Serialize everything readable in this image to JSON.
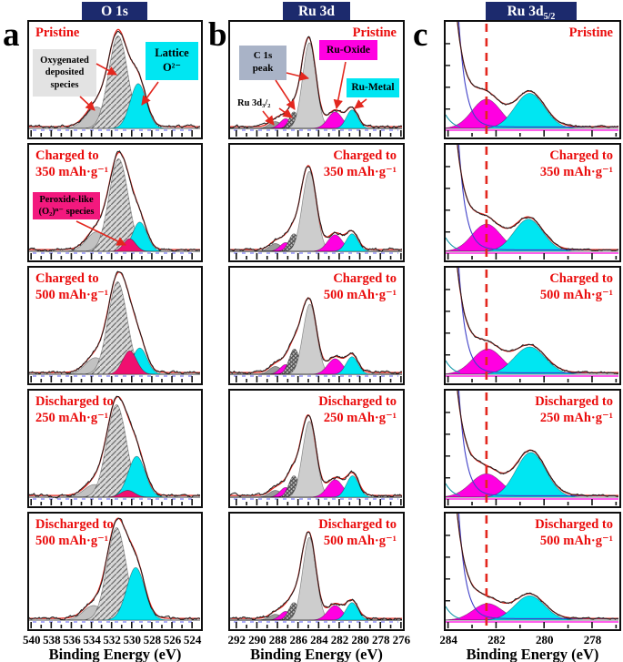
{
  "figure": {
    "letters": [
      "a",
      "b",
      "c"
    ]
  },
  "colors": {
    "header_bg": "#1c2a6d",
    "label_red": "#ea0c0c",
    "fit_red": "#e3271e",
    "data_black": "#1c1c1c",
    "cyan": "#00e6f2",
    "magenta": "#ff00e1",
    "pink": "#f01070",
    "gray_light": "#cdcdcd",
    "gray_mid": "#c2c2c2",
    "gray_dark": "#9a9a9a",
    "bg_blue": "#4040c8",
    "baseline_blue": "#5a5af0",
    "teal": "#1899aa"
  },
  "annotations": {
    "oxygenated": "Oxygenated\ndeposited\nspecies",
    "lattice": "Lattice\nO²⁻",
    "peroxide": "Peroxide-like\n(O₂)ⁿ⁻ species",
    "c1s": "C 1s\npeak",
    "ru3d32": "Ru 3d₃/₂",
    "ru_oxide": "Ru-Oxide",
    "ru_metal": "Ru-Metal"
  },
  "chart_data": [
    {
      "id": "O1s",
      "type": "area",
      "header": {
        "main": "O 1s",
        "sub": ""
      },
      "xlabel": "Binding Energy (eV)",
      "x_range": [
        540.2,
        523.2
      ],
      "x_ticks": [
        540,
        538,
        536,
        534,
        532,
        530,
        528,
        526,
        524
      ],
      "panels": [
        {
          "label": "Pristine",
          "peaks": [
            {
              "name": "oxygenated-deposited-species",
              "fill": "gray",
              "center": 533.5,
              "sigma": 1.05,
              "height": 0.22
            },
            {
              "name": "surface-oxygen",
              "fill": "hatch",
              "center": 531.35,
              "sigma": 0.95,
              "height": 0.95
            },
            {
              "name": "lattice-o2-",
              "fill": "cyan",
              "center": 529.35,
              "sigma": 0.8,
              "height": 0.46
            }
          ]
        },
        {
          "label": "Charged to\n350 mAh·g⁻¹",
          "peaks": [
            {
              "name": "oxygenated-deposited-species",
              "fill": "gray",
              "center": 533.5,
              "sigma": 1.0,
              "height": 0.2
            },
            {
              "name": "surface-oxygen",
              "fill": "hatch",
              "center": 531.3,
              "sigma": 0.95,
              "height": 0.95
            },
            {
              "name": "lattice-o2-",
              "fill": "cyan",
              "center": 529.2,
              "sigma": 0.72,
              "height": 0.3
            },
            {
              "name": "peroxide-species",
              "fill": "pink",
              "center": 530.2,
              "sigma": 0.6,
              "height": 0.13
            }
          ]
        },
        {
          "label": "Charged to\n500 mAh·g⁻¹",
          "peaks": [
            {
              "name": "oxygenated-deposited-species",
              "fill": "gray",
              "center": 533.6,
              "sigma": 1.0,
              "height": 0.17
            },
            {
              "name": "surface-oxygen",
              "fill": "hatch",
              "center": 531.4,
              "sigma": 0.95,
              "height": 0.95
            },
            {
              "name": "lattice-o2-",
              "fill": "cyan",
              "center": 529.2,
              "sigma": 0.72,
              "height": 0.27
            },
            {
              "name": "peroxide-species",
              "fill": "pink",
              "center": 530.2,
              "sigma": 0.7,
              "height": 0.24
            }
          ]
        },
        {
          "label": "Discharged to\n250 mAh·g⁻¹",
          "peaks": [
            {
              "name": "oxygenated-deposited-species",
              "fill": "gray",
              "center": 533.7,
              "sigma": 1.0,
              "height": 0.13
            },
            {
              "name": "surface-oxygen",
              "fill": "hatch",
              "center": 531.5,
              "sigma": 0.98,
              "height": 0.95
            },
            {
              "name": "lattice-o2-",
              "fill": "cyan",
              "center": 529.5,
              "sigma": 0.85,
              "height": 0.42
            },
            {
              "name": "peroxide-species",
              "fill": "pink",
              "center": 530.4,
              "sigma": 0.7,
              "height": 0.07
            }
          ]
        },
        {
          "label": "Discharged to\n500 mAh·g⁻¹",
          "peaks": [
            {
              "name": "oxygenated-deposited-species",
              "fill": "gray",
              "center": 533.8,
              "sigma": 1.0,
              "height": 0.15
            },
            {
              "name": "surface-oxygen",
              "fill": "hatch",
              "center": 531.5,
              "sigma": 0.95,
              "height": 0.95
            },
            {
              "name": "lattice-o2-",
              "fill": "cyan",
              "center": 529.6,
              "sigma": 0.9,
              "height": 0.54
            }
          ]
        }
      ]
    },
    {
      "id": "Ru3d",
      "type": "area",
      "header": {
        "main": "Ru 3d",
        "sub": ""
      },
      "xlabel": "Binding Energy (eV)",
      "x_range": [
        292.6,
        275.9
      ],
      "x_ticks": [
        292,
        290,
        288,
        286,
        284,
        282,
        280,
        278,
        276
      ],
      "panels": [
        {
          "label": "Pristine",
          "peaks": [
            {
              "name": "ru3d32-oxide",
              "fill": "darkgray",
              "center": 288.2,
              "sigma": 0.6,
              "height": 0.07
            },
            {
              "name": "ru3d32-magenta",
              "fill": "magenta",
              "center": 287.2,
              "sigma": 0.55,
              "height": 0.1
            },
            {
              "name": "c1s-satellite",
              "fill": "hatch2",
              "center": 286.4,
              "sigma": 0.45,
              "height": 0.17
            },
            {
              "name": "ru3d32-metal",
              "fill": "cyan",
              "center": 285.6,
              "sigma": 0.4,
              "height": 0.14
            },
            {
              "name": "c1s-main",
              "fill": "lightgray",
              "center": 284.9,
              "sigma": 0.65,
              "height": 0.88
            },
            {
              "name": "ru-oxide",
              "fill": "magenta",
              "center": 282.4,
              "sigma": 0.7,
              "height": 0.17
            },
            {
              "name": "ru-metal",
              "fill": "cyan",
              "center": 280.75,
              "sigma": 0.55,
              "height": 0.19
            }
          ]
        },
        {
          "label": "Charged to\n350 mAh·g⁻¹",
          "peaks": [
            {
              "name": "ru3d32-oxide",
              "fill": "darkgray",
              "center": 288.2,
              "sigma": 0.6,
              "height": 0.08
            },
            {
              "name": "ru3d32-magenta",
              "fill": "magenta",
              "center": 287.2,
              "sigma": 0.55,
              "height": 0.09
            },
            {
              "name": "c1s-satellite",
              "fill": "hatch2",
              "center": 286.4,
              "sigma": 0.5,
              "height": 0.18
            },
            {
              "name": "ru3d32-metal",
              "fill": "cyan",
              "center": 285.6,
              "sigma": 0.42,
              "height": 0.13
            },
            {
              "name": "c1s-main",
              "fill": "lightgray",
              "center": 284.9,
              "sigma": 0.68,
              "height": 0.82
            },
            {
              "name": "ru-oxide",
              "fill": "magenta",
              "center": 282.4,
              "sigma": 0.72,
              "height": 0.17
            },
            {
              "name": "ru-metal",
              "fill": "cyan",
              "center": 280.75,
              "sigma": 0.58,
              "height": 0.18
            }
          ]
        },
        {
          "label": "Charged to\n500 mAh·g⁻¹",
          "peaks": [
            {
              "name": "ru3d32-oxide",
              "fill": "darkgray",
              "center": 288.2,
              "sigma": 0.6,
              "height": 0.08
            },
            {
              "name": "ru3d32-magenta",
              "fill": "magenta",
              "center": 287.2,
              "sigma": 0.55,
              "height": 0.1
            },
            {
              "name": "c1s-satellite",
              "fill": "hatch2",
              "center": 286.35,
              "sigma": 0.52,
              "height": 0.26
            },
            {
              "name": "ru3d32-metal",
              "fill": "cyan",
              "center": 285.6,
              "sigma": 0.42,
              "height": 0.15
            },
            {
              "name": "c1s-main",
              "fill": "lightgray",
              "center": 284.85,
              "sigma": 0.66,
              "height": 0.72
            },
            {
              "name": "ru-oxide",
              "fill": "magenta",
              "center": 282.4,
              "sigma": 0.72,
              "height": 0.16
            },
            {
              "name": "ru-metal",
              "fill": "cyan",
              "center": 280.75,
              "sigma": 0.58,
              "height": 0.18
            }
          ]
        },
        {
          "label": "Discharged to\n250 mAh·g⁻¹",
          "peaks": [
            {
              "name": "ru3d32-oxide",
              "fill": "darkgray",
              "center": 288.2,
              "sigma": 0.6,
              "height": 0.07
            },
            {
              "name": "ru3d32-magenta",
              "fill": "magenta",
              "center": 287.2,
              "sigma": 0.55,
              "height": 0.1
            },
            {
              "name": "c1s-satellite",
              "fill": "hatch2",
              "center": 286.4,
              "sigma": 0.5,
              "height": 0.22
            },
            {
              "name": "ru3d32-metal",
              "fill": "cyan",
              "center": 285.6,
              "sigma": 0.42,
              "height": 0.14
            },
            {
              "name": "c1s-main",
              "fill": "lightgray",
              "center": 284.9,
              "sigma": 0.66,
              "height": 0.78
            },
            {
              "name": "ru-oxide",
              "fill": "magenta",
              "center": 282.4,
              "sigma": 0.75,
              "height": 0.18
            },
            {
              "name": "ru-metal",
              "fill": "cyan",
              "center": 280.7,
              "sigma": 0.6,
              "height": 0.22
            }
          ]
        },
        {
          "label": "Discharged to\n500 mAh·g⁻¹",
          "peaks": [
            {
              "name": "ru3d32-oxide",
              "fill": "darkgray",
              "center": 288.2,
              "sigma": 0.6,
              "height": 0.06
            },
            {
              "name": "ru3d32-magenta",
              "fill": "magenta",
              "center": 287.2,
              "sigma": 0.55,
              "height": 0.09
            },
            {
              "name": "c1s-satellite",
              "fill": "hatch2",
              "center": 286.4,
              "sigma": 0.5,
              "height": 0.18
            },
            {
              "name": "ru3d32-metal",
              "fill": "cyan",
              "center": 285.6,
              "sigma": 0.42,
              "height": 0.13
            },
            {
              "name": "c1s-main",
              "fill": "lightgray",
              "center": 284.9,
              "sigma": 0.65,
              "height": 0.85
            },
            {
              "name": "ru-oxide",
              "fill": "magenta",
              "center": 282.4,
              "sigma": 0.72,
              "height": 0.15
            },
            {
              "name": "ru-metal",
              "fill": "cyan",
              "center": 280.75,
              "sigma": 0.58,
              "height": 0.18
            }
          ]
        }
      ]
    },
    {
      "id": "Ru3d52",
      "type": "area",
      "header": {
        "main": "Ru 3d",
        "sub": "5/2"
      },
      "xlabel": "Binding Energy (eV)",
      "x_range": [
        284.1,
        276.9
      ],
      "x_ticks": [
        284,
        282,
        280,
        278
      ],
      "vline": 282.4,
      "tail": {
        "amp": 3.2,
        "k": 2.3
      },
      "bg_line": {
        "amp": 7.0,
        "k": 3.4
      },
      "panels": [
        {
          "label": "Pristine",
          "peaks": [
            {
              "name": "ru-oxide-3d52",
              "fill": "magenta",
              "center": 282.4,
              "sigma": 0.6,
              "height": 0.3
            },
            {
              "name": "ru-metal-3d52",
              "fill": "cyan",
              "center": 280.6,
              "sigma": 0.62,
              "height": 0.36
            }
          ]
        },
        {
          "label": "Charged to\n350 mAh·g⁻¹",
          "peaks": [
            {
              "name": "ru-oxide-3d52",
              "fill": "magenta",
              "center": 282.4,
              "sigma": 0.6,
              "height": 0.28
            },
            {
              "name": "ru-metal-3d52",
              "fill": "cyan",
              "center": 280.65,
              "sigma": 0.6,
              "height": 0.33
            }
          ]
        },
        {
          "label": "Charged to\n500 mAh·g⁻¹",
          "peaks": [
            {
              "name": "ru-oxide-3d52",
              "fill": "magenta",
              "center": 282.35,
              "sigma": 0.62,
              "height": 0.26
            },
            {
              "name": "ru-metal-3d52",
              "fill": "cyan",
              "center": 280.6,
              "sigma": 0.65,
              "height": 0.28
            }
          ]
        },
        {
          "label": "Discharged to\n250 mAh·g⁻¹",
          "peaks": [
            {
              "name": "ru-oxide-3d52",
              "fill": "magenta",
              "center": 282.4,
              "sigma": 0.65,
              "height": 0.24
            },
            {
              "name": "ru-metal-3d52",
              "fill": "cyan",
              "center": 280.55,
              "sigma": 0.62,
              "height": 0.46
            }
          ]
        },
        {
          "label": "Discharged to\n500 mAh·g⁻¹",
          "peaks": [
            {
              "name": "ru-oxide-3d52",
              "fill": "magenta",
              "center": 282.35,
              "sigma": 0.6,
              "height": 0.17
            },
            {
              "name": "ru-metal-3d52",
              "fill": "cyan",
              "center": 280.6,
              "sigma": 0.62,
              "height": 0.25
            }
          ]
        }
      ]
    }
  ]
}
